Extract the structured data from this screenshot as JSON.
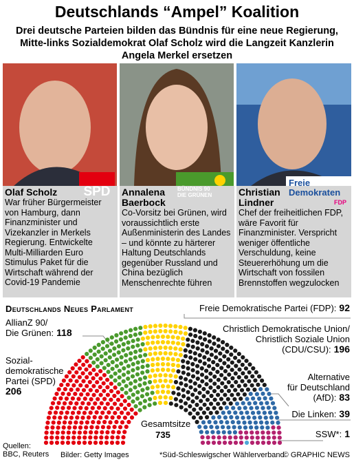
{
  "header": {
    "title": "Deutschlands “Ampel” Koalition",
    "subtitle": "Drei deutsche Parteien bilden das Bündnis für eine neue Regierung, Mitte-links Sozialdemokrat Olaf Scholz wird die Langzeit Kanzlerin Angela Merkel ersetzen"
  },
  "profiles": [
    {
      "name": "Olaf Scholz",
      "bio": "War früher Bürgermeister von Hamburg, dann Finanzminister und Vizekanzler in Merkels Regierung. Entwickelte Multi-Milliarden Euro Stimulus Paket für die Wirtschaft während der Covid-19 Pandemie",
      "logo": [
        "SPD"
      ]
    },
    {
      "name": "Annalena Baerbock",
      "bio": "Co-Vorsitz bei Grünen, wird voraussichtlich erste Außenministerin des Landes – und könnte zu härterer Haltung Deutschlands gegenüber Russland und China bezüglich Menschenrechte führen",
      "logo": [
        "BÜNDNIS 90",
        "DIE GRÜNEN"
      ]
    },
    {
      "name": "Christian Lindner",
      "bio": "Chef der freiheitlichen FDP, wäre Favorit für Finanzminister. Verspricht weniger öffentliche Verschuldung, keine Steuererhöhung um die Wirtschaft von fossilen Brennstoffen wegzulocken",
      "logo": [
        "Freie",
        "Demokraten",
        "FDP"
      ]
    }
  ],
  "chart_data": {
    "type": "parliament",
    "title": "Deutschlands Neues Parlament",
    "total_label": "Gesamtsitze",
    "total": 735,
    "series": [
      {
        "name": "Sozial-\ndemokratische\nPartei (SPD)",
        "color": "#e3000f",
        "value": 206
      },
      {
        "name": "AllianZ 90/\nDie Grünen:",
        "color": "#4a9a2c",
        "value": 118
      },
      {
        "name": "Freie Demokratische Partei (FDP):",
        "color": "#ffd200",
        "value": 92
      },
      {
        "name": "Christlich Demokratische Union/\nChristlich Soziale Union\n(CDU/CSU):",
        "color": "#1a1a1a",
        "value": 196
      },
      {
        "name": "Alternative\nfür Deutschland\n(AfD):",
        "color": "#2e69a6",
        "value": 83
      },
      {
        "name": "Die Linken:",
        "color": "#b3226e",
        "value": 39
      },
      {
        "name": "SSW*:",
        "color": "#4fa8d8",
        "value": 1
      }
    ]
  },
  "footer": {
    "sources": "Quellen:\nBBC, Reuters",
    "images": "Bilder: Getty Images",
    "note": "*Süd-Schleswigscher Wählerverband",
    "copyright": "© GRAPHIC NEWS"
  }
}
